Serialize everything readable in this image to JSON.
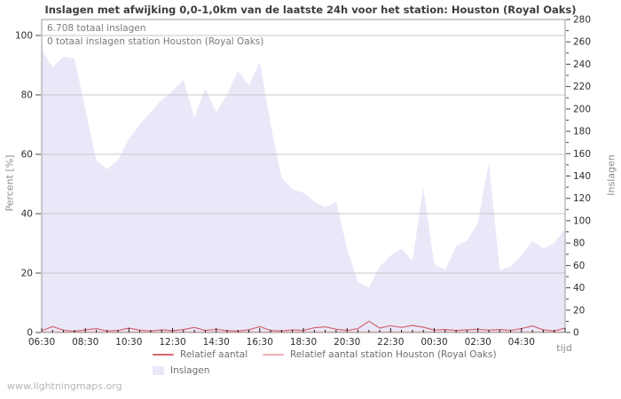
{
  "title": "Inslagen met afwijking 0,0-1,0km van de laatste 24h voor het station: Houston (Royal Oaks)",
  "annotations": {
    "total": "6.708 totaal inslagen",
    "station_total": "0 totaal inslagen station Houston (Royal Oaks)"
  },
  "watermark": "www.lightningmaps.org",
  "colors": {
    "area": "#e8e8f9",
    "relative_line": "#d5646f",
    "station_line": "#f2aeb6",
    "grid": "#c9c9c9",
    "border": "#9b9b9b",
    "x_tick": "#1c1c1c",
    "y_tick": "#4a4a4a"
  },
  "legend": [
    {
      "label": "Relatief aantal",
      "type": "line",
      "color_key": "relative_line"
    },
    {
      "label": "Relatief aantal station Houston (Royal Oaks)",
      "type": "line",
      "color_key": "station_line"
    },
    {
      "label": "Inslagen",
      "type": "area",
      "color_key": "area"
    }
  ],
  "axes": {
    "left_label": "Percent  [%]",
    "right_label": "Inslagen",
    "x_label": "tijd"
  },
  "chart_data": {
    "type": "area",
    "title": "Inslagen met afwijking 0,0-1,0km van de laatste 24h voor het station: Houston (Royal Oaks)",
    "xlabel": "tijd",
    "ylabel_left": "Percent [%]",
    "ylabel_right": "Inslagen",
    "x_start": "06:30",
    "x_interval_minutes": 30,
    "x_tick_labels": [
      "06:30",
      "08:30",
      "10:30",
      "12:30",
      "14:30",
      "16:30",
      "18:30",
      "20:30",
      "22:30",
      "00:30",
      "02:30",
      "04:30"
    ],
    "left_axis": {
      "label": "Percent [%]",
      "min": 0,
      "max": 100,
      "tick_step": 20
    },
    "right_axis": {
      "label": "Inslagen",
      "min": 0,
      "max": 280,
      "tick_step": 20,
      "minor_step": 10
    },
    "grid": "horizontal",
    "legend_position": "bottom",
    "series": [
      {
        "name": "Inslagen",
        "type": "area",
        "axis": "right",
        "values": [
          253,
          237,
          247,
          245,
          200,
          154,
          146,
          154,
          173,
          186,
          197,
          208,
          216,
          226,
          192,
          218,
          197,
          213,
          234,
          221,
          242,
          186,
          138,
          128,
          125,
          117,
          112,
          117,
          75,
          45,
          40,
          59,
          69,
          75,
          64,
          130,
          61,
          56,
          77,
          82,
          98,
          152,
          56,
          59,
          69,
          82,
          75,
          80,
          93
        ]
      },
      {
        "name": "Relatief aantal",
        "type": "line",
        "axis": "left",
        "values": [
          0.6,
          2.0,
          0.8,
          0.4,
          0.9,
          1.3,
          0.5,
          0.7,
          1.5,
          0.8,
          0.5,
          0.9,
          0.6,
          1.0,
          1.7,
          0.7,
          1.1,
          0.6,
          0.5,
          0.9,
          2.0,
          0.7,
          0.5,
          0.9,
          0.7,
          1.6,
          1.9,
          1.1,
          0.7,
          1.3,
          3.8,
          1.5,
          2.3,
          1.7,
          2.4,
          1.8,
          0.8,
          1.0,
          0.7,
          0.9,
          1.1,
          0.8,
          1.0,
          0.7,
          1.3,
          2.2,
          0.9,
          0.5,
          1.5
        ]
      },
      {
        "name": "Relatief aantal station Houston (Royal Oaks)",
        "type": "line",
        "axis": "left",
        "values": [
          0,
          0,
          0,
          0,
          0,
          0,
          0,
          0,
          0,
          0,
          0,
          0,
          0,
          0,
          0,
          0,
          0,
          0,
          0,
          0,
          0,
          0,
          0,
          0,
          0,
          0,
          0,
          0,
          0,
          0,
          0,
          0,
          0,
          0,
          0,
          0,
          0,
          0,
          0,
          0,
          0,
          0,
          0,
          0,
          0,
          0,
          0,
          0,
          0
        ]
      }
    ]
  }
}
